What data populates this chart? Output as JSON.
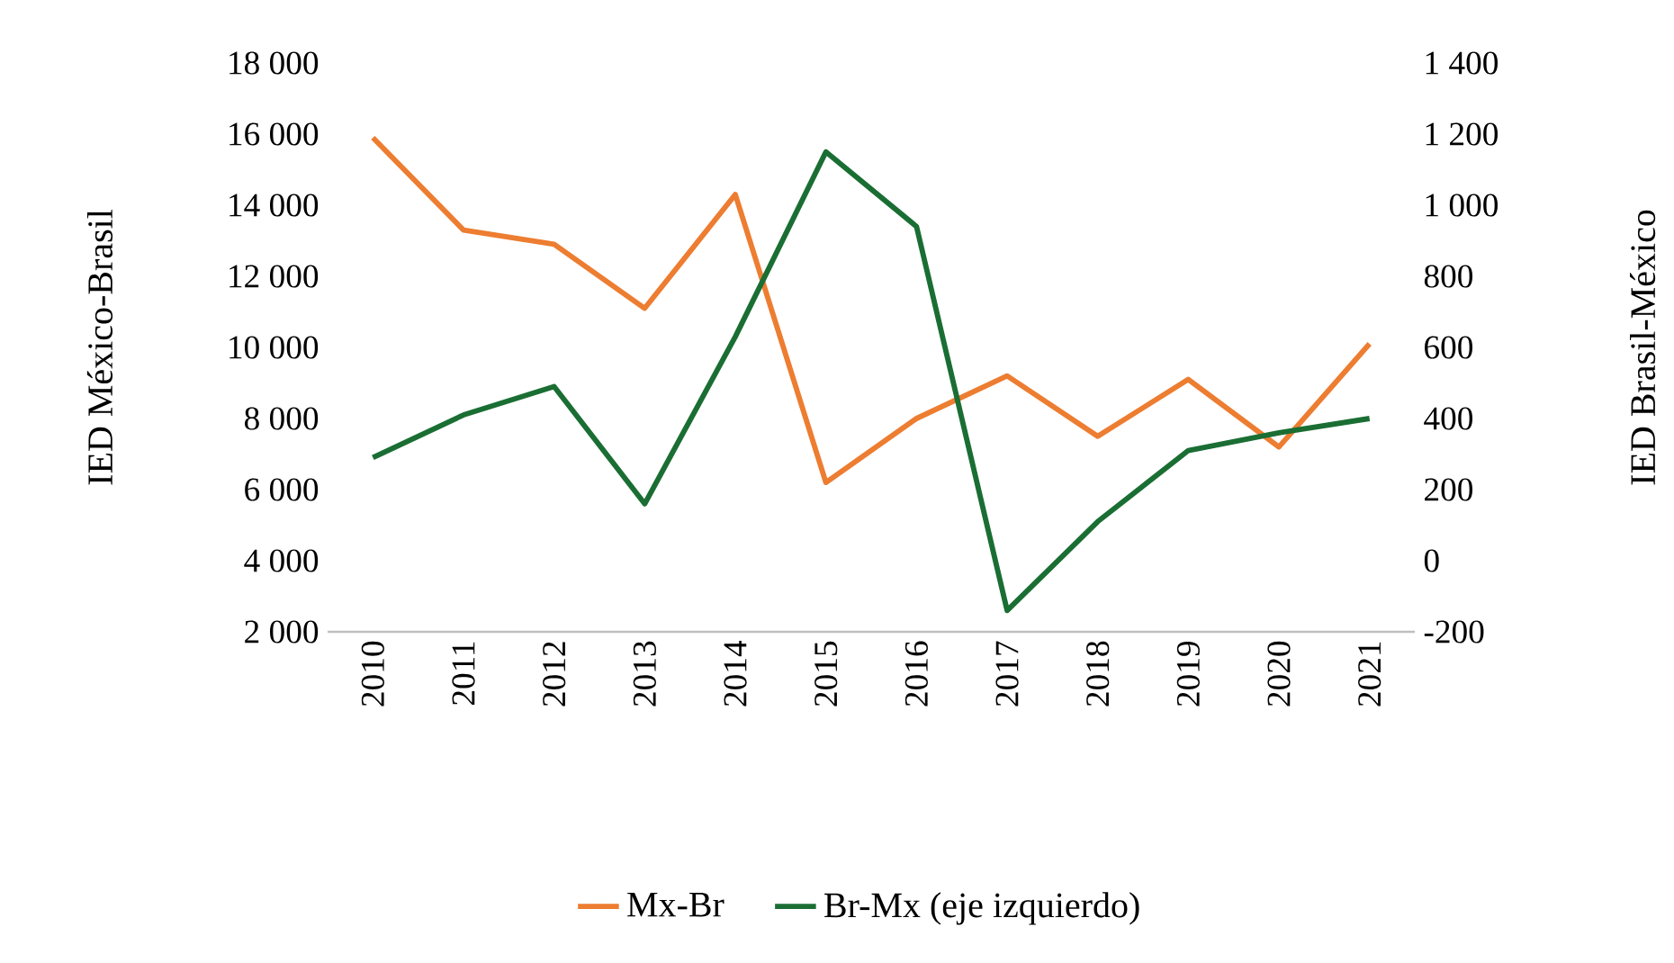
{
  "chart_data": {
    "type": "line",
    "categories": [
      "2010",
      "2011",
      "2012",
      "2013",
      "2014",
      "2015",
      "2016",
      "2017",
      "2018",
      "2019",
      "2020",
      "2021"
    ],
    "ylabel": "IED México-Brasil",
    "y2label": "IED Brasil-México",
    "ylim": [
      2000,
      18000
    ],
    "yticks": [
      {
        "value": 2000,
        "label": "2 000"
      },
      {
        "value": 4000,
        "label": "4 000"
      },
      {
        "value": 6000,
        "label": "6 000"
      },
      {
        "value": 8000,
        "label": "8 000"
      },
      {
        "value": 10000,
        "label": "10 000"
      },
      {
        "value": 12000,
        "label": "12 000"
      },
      {
        "value": 14000,
        "label": "14 000"
      },
      {
        "value": 16000,
        "label": "16 000"
      },
      {
        "value": 18000,
        "label": "18 000"
      }
    ],
    "y2lim": [
      -200,
      1400
    ],
    "y2ticks": [
      -200,
      0,
      200,
      400,
      600,
      800,
      {
        "value": 1000,
        "label": "1 000"
      },
      {
        "value": 1200,
        "label": "1 200"
      },
      {
        "value": 1400,
        "label": "1 400"
      }
    ],
    "legend": "bottom",
    "grid": false,
    "marker": "none",
    "line_style": "solid",
    "series": [
      {
        "name": "Mx-Br",
        "color": "#ed7d31",
        "axis": "y",
        "values": [
          15900,
          13300,
          12900,
          11100,
          14300,
          6200,
          8000,
          9200,
          7500,
          9100,
          7200,
          10100
        ]
      },
      {
        "name": "Br-Mx (eje izquierdo)",
        "color": "#1a6e33",
        "axis": "y2",
        "values": [
          290,
          410,
          490,
          160,
          630,
          1150,
          940,
          -140,
          110,
          310,
          360,
          400
        ]
      }
    ]
  }
}
